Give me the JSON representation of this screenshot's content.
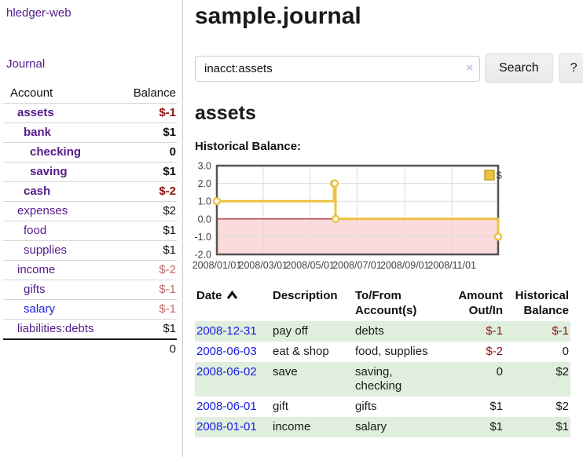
{
  "app": {
    "brand": "hledger-web",
    "nav_journal": "Journal"
  },
  "sidebar": {
    "table_headers": {
      "account": "Account",
      "balance": "Balance"
    },
    "accounts": [
      {
        "name": "assets",
        "indent": 0,
        "bold": true,
        "link": "purple",
        "balance": "$-1",
        "balance_style": "negative-strong"
      },
      {
        "name": "bank",
        "indent": 1,
        "bold": true,
        "link": "purple",
        "balance": "$1",
        "balance_style": "normal"
      },
      {
        "name": "checking",
        "indent": 2,
        "bold": true,
        "link": "purple",
        "balance": "0",
        "balance_style": "normal"
      },
      {
        "name": "saving",
        "indent": 2,
        "bold": true,
        "link": "purple",
        "balance": "$1",
        "balance_style": "normal"
      },
      {
        "name": "cash",
        "indent": 1,
        "bold": true,
        "link": "purple",
        "balance": "$-2",
        "balance_style": "negative-strong"
      },
      {
        "name": "expenses",
        "indent": 0,
        "bold": false,
        "link": "purple",
        "balance": "$2",
        "balance_style": "normal"
      },
      {
        "name": "food",
        "indent": 1,
        "bold": false,
        "link": "purple",
        "balance": "$1",
        "balance_style": "normal"
      },
      {
        "name": "supplies",
        "indent": 1,
        "bold": false,
        "link": "purple",
        "balance": "$1",
        "balance_style": "normal"
      },
      {
        "name": "income",
        "indent": 0,
        "bold": false,
        "link": "purple",
        "balance": "$-2",
        "balance_style": "negative-soft"
      },
      {
        "name": "gifts",
        "indent": 1,
        "bold": false,
        "link": "purple",
        "balance": "$-1",
        "balance_style": "negative-soft"
      },
      {
        "name": "salary",
        "indent": 1,
        "bold": false,
        "link": "blue",
        "balance": "$-1",
        "balance_style": "negative-soft"
      },
      {
        "name": "liabilities:debts",
        "indent": 0,
        "bold": false,
        "link": "purple",
        "balance": "$1",
        "balance_style": "normal"
      }
    ],
    "total": "0"
  },
  "header": {
    "title": "sample.journal"
  },
  "search": {
    "value": "inacct:assets",
    "clear_icon": "×",
    "button": "Search",
    "help_button": "?"
  },
  "account_page": {
    "heading": "assets",
    "chart_title": "Historical Balance:"
  },
  "chart_data": {
    "type": "line",
    "step": true,
    "title": "Historical Balance:",
    "series": [
      {
        "name": "$",
        "color": "#edc240",
        "points": [
          [
            "2008-01-01",
            1
          ],
          [
            "2008-06-01",
            2
          ],
          [
            "2008-06-02",
            2
          ],
          [
            "2008-06-03",
            0
          ],
          [
            "2008-12-31",
            -1
          ]
        ]
      }
    ],
    "x_domain": [
      "2008-01-01",
      "2008-12-31"
    ],
    "x_ticks": [
      {
        "date": "2008-01-01",
        "label": "2008/01/01"
      },
      {
        "date": "2008-03-01",
        "label": "2008/03/01"
      },
      {
        "date": "2008-05-01",
        "label": "2008/05/01"
      },
      {
        "date": "2008-07-01",
        "label": "2008/07/01"
      },
      {
        "date": "2008-09-01",
        "label": "2008/09/01"
      },
      {
        "date": "2008-11-01",
        "label": "2008/11/01"
      }
    ],
    "ylim": [
      -2,
      3
    ],
    "y_ticks": [
      3,
      2,
      1,
      0,
      -1,
      -2
    ],
    "y_tick_labels": [
      "3.0",
      "2.0",
      "1.0",
      "0.0",
      "-1.0",
      "-2.0"
    ],
    "grid": true,
    "legend_position": "top-right",
    "negative_region_fill": "#fbdbdb",
    "zero_line_color": "#a01010",
    "grid_color": "#dcdcdc",
    "border_color": "#545454",
    "marker_fill": "#ffffff",
    "legend_box_border": "#b99a2f"
  },
  "register": {
    "columns": [
      {
        "label": "Date",
        "align": "left",
        "sortable": true
      },
      {
        "label": "Description",
        "align": "left"
      },
      {
        "label": "To/From Account(s)",
        "align": "left"
      },
      {
        "label": "Amount Out/In",
        "align": "right"
      },
      {
        "label": "Historical Balance",
        "align": "right"
      }
    ],
    "sort_icon": "chevron-up",
    "rows": [
      {
        "date": "2008-12-31",
        "description": "pay off",
        "accounts": "debts",
        "amount": "$-1",
        "amount_negative": true,
        "balance": "$-1",
        "balance_negative": true,
        "shaded": true
      },
      {
        "date": "2008-06-03",
        "description": "eat & shop",
        "accounts": "food, supplies",
        "amount": "$-2",
        "amount_negative": true,
        "balance": "0",
        "balance_negative": false,
        "shaded": false
      },
      {
        "date": "2008-06-02",
        "description": "save",
        "accounts": "saving, checking",
        "amount": "0",
        "amount_negative": false,
        "balance": "$2",
        "balance_negative": false,
        "shaded": true
      },
      {
        "date": "2008-06-01",
        "description": "gift",
        "accounts": "gifts",
        "amount": "$1",
        "amount_negative": false,
        "balance": "$2",
        "balance_negative": false,
        "shaded": false
      },
      {
        "date": "2008-01-01",
        "description": "income",
        "accounts": "salary",
        "amount": "$1",
        "amount_negative": false,
        "balance": "$1",
        "balance_negative": false,
        "shaded": true
      }
    ]
  },
  "colors": {
    "link_purple": "#551a8b",
    "link_blue": "#1b1be8",
    "negative_strong": "#8f1212",
    "negative_soft": "#c2686c",
    "row_shade_green": "#dfeedd",
    "series_gold": "#edc240"
  }
}
